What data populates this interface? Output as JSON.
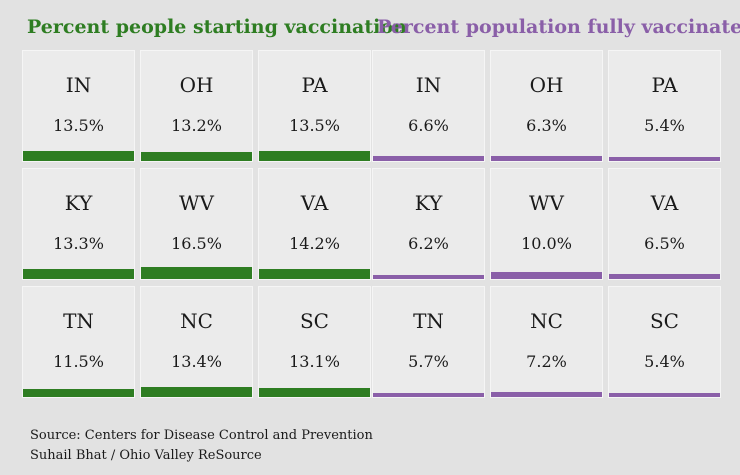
{
  "colors": {
    "starting": "#2e7d22",
    "full": "#8a5fa8"
  },
  "chart_data": [
    {
      "type": "table",
      "title": "Percent people starting vaccination",
      "cells": [
        {
          "state": "IN",
          "value": 13.5,
          "label": "13.5%"
        },
        {
          "state": "OH",
          "value": 13.2,
          "label": "13.2%"
        },
        {
          "state": "PA",
          "value": 13.5,
          "label": "13.5%"
        },
        {
          "state": "KY",
          "value": 13.3,
          "label": "13.3%"
        },
        {
          "state": "WV",
          "value": 16.5,
          "label": "16.5%"
        },
        {
          "state": "VA",
          "value": 14.2,
          "label": "14.2%"
        },
        {
          "state": "TN",
          "value": 11.5,
          "label": "11.5%"
        },
        {
          "state": "NC",
          "value": 13.4,
          "label": "13.4%"
        },
        {
          "state": "SC",
          "value": 13.1,
          "label": "13.1%"
        }
      ]
    },
    {
      "type": "table",
      "title": "Percent population fully vaccinated",
      "cells": [
        {
          "state": "IN",
          "value": 6.6,
          "label": "6.6%"
        },
        {
          "state": "OH",
          "value": 6.3,
          "label": "6.3%"
        },
        {
          "state": "PA",
          "value": 5.4,
          "label": "5.4%"
        },
        {
          "state": "KY",
          "value": 6.2,
          "label": "6.2%"
        },
        {
          "state": "WV",
          "value": 10.0,
          "label": "10.0%"
        },
        {
          "state": "VA",
          "value": 6.5,
          "label": "6.5%"
        },
        {
          "state": "TN",
          "value": 5.7,
          "label": "5.7%"
        },
        {
          "state": "NC",
          "value": 7.2,
          "label": "7.2%"
        },
        {
          "state": "SC",
          "value": 5.4,
          "label": "5.4%"
        }
      ]
    }
  ],
  "footer": {
    "source": "Source: Centers for Disease Control and Prevention",
    "credit": "Suhail Bhat / Ohio Valley ReSource"
  }
}
